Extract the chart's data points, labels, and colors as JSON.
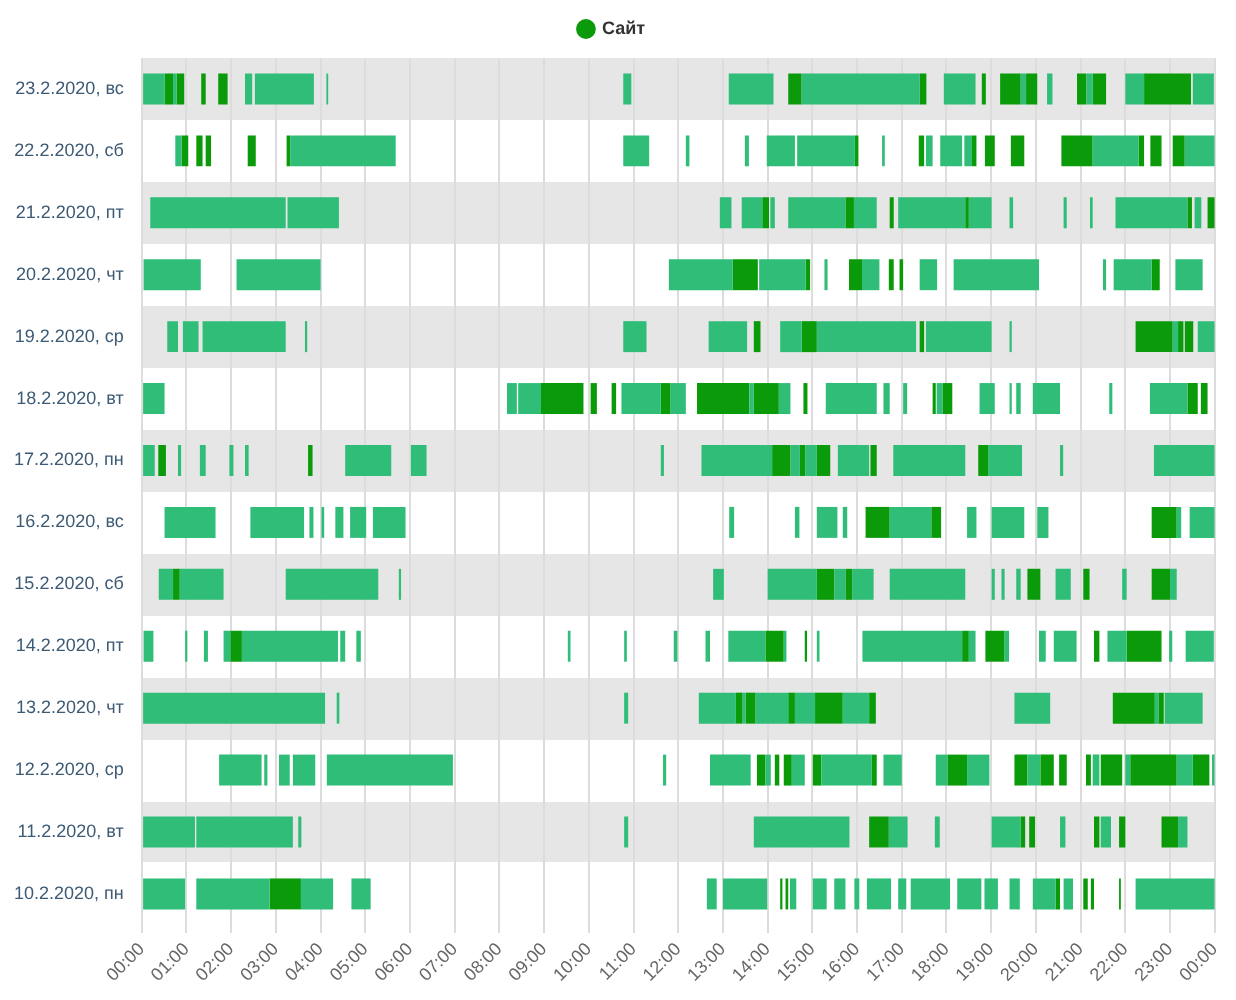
{
  "chart_data": {
    "type": "bar",
    "orientation": "horizontal",
    "legend": "top",
    "grid": "x",
    "categories": [
      "23.2.2020, вс",
      "22.2.2020, сб",
      "21.2.2020, пт",
      "20.2.2020, чт",
      "19.2.2020, ср",
      "18.2.2020, вт",
      "17.2.2020, пн",
      "16.2.2020, вс",
      "15.2.2020, сб",
      "14.2.2020, пт",
      "13.2.2020, чт",
      "12.2.2020, ср",
      "11.2.2020, вт",
      "10.2.2020, пн"
    ],
    "xlim": [
      0,
      24
    ],
    "xticks": [
      {
        "value": 0,
        "label": "00:00"
      },
      {
        "value": 1,
        "label": "01:00"
      },
      {
        "value": 2,
        "label": "02:00"
      },
      {
        "value": 3,
        "label": "03:00"
      },
      {
        "value": 4,
        "label": "04:00"
      },
      {
        "value": 5,
        "label": "05:00"
      },
      {
        "value": 6,
        "label": "06:00"
      },
      {
        "value": 7,
        "label": "07:00"
      },
      {
        "value": 8,
        "label": "08:00"
      },
      {
        "value": 9,
        "label": "09:00"
      },
      {
        "value": 10,
        "label": "10:00"
      },
      {
        "value": 11,
        "label": "11:00"
      },
      {
        "value": 12,
        "label": "12:00"
      },
      {
        "value": 13,
        "label": "13:00"
      },
      {
        "value": 14,
        "label": "14:00"
      },
      {
        "value": 15,
        "label": "15:00"
      },
      {
        "value": 16,
        "label": "16:00"
      },
      {
        "value": 17,
        "label": "17:00"
      },
      {
        "value": 18,
        "label": "18:00"
      },
      {
        "value": 19,
        "label": "19:00"
      },
      {
        "value": 20,
        "label": "20:00"
      },
      {
        "value": 21,
        "label": "21:00"
      },
      {
        "value": 22,
        "label": "22:00"
      },
      {
        "value": 23,
        "label": "23:00"
      },
      {
        "value": 24,
        "label": "00:00"
      }
    ],
    "series": [
      {
        "color": "#2fbd78",
        "x": [
          "23.2.2020, вс",
          "23.2.2020, вс",
          "23.2.2020, вс",
          "23.2.2020, вс",
          "23.2.2020, вс",
          "23.2.2020, вс",
          "23.2.2020, вс",
          "23.2.2020, вс",
          "23.2.2020, вс",
          "23.2.2020, вс",
          "23.2.2020, вс",
          "23.2.2020, вс",
          "23.2.2020, вс",
          "23.2.2020, вс",
          "22.2.2020, сб",
          "22.2.2020, сб",
          "22.2.2020, сб",
          "22.2.2020, сб",
          "22.2.2020, сб",
          "22.2.2020, сб",
          "22.2.2020, сб",
          "22.2.2020, сб",
          "22.2.2020, сб",
          "22.2.2020, сб",
          "22.2.2020, сб",
          "22.2.2020, сб",
          "22.2.2020, сб",
          "21.2.2020, пт",
          "21.2.2020, пт",
          "21.2.2020, пт",
          "21.2.2020, пт",
          "21.2.2020, пт",
          "21.2.2020, пт",
          "21.2.2020, пт",
          "21.2.2020, пт",
          "21.2.2020, пт",
          "21.2.2020, пт",
          "21.2.2020, пт",
          "21.2.2020, пт",
          "21.2.2020, пт",
          "21.2.2020, пт",
          "20.2.2020, чт",
          "20.2.2020, чт",
          "20.2.2020, чт",
          "20.2.2020, чт",
          "20.2.2020, чт",
          "20.2.2020, чт",
          "20.2.2020, чт",
          "20.2.2020, чт",
          "20.2.2020, чт",
          "20.2.2020, чт",
          "20.2.2020, чт",
          "19.2.2020, ср",
          "19.2.2020, ср",
          "19.2.2020, ср",
          "19.2.2020, ср",
          "19.2.2020, ср",
          "19.2.2020, ср",
          "19.2.2020, ср",
          "19.2.2020, ср",
          "19.2.2020, ср",
          "19.2.2020, ср",
          "19.2.2020, ср",
          "19.2.2020, ср",
          "18.2.2020, вт",
          "18.2.2020, вт",
          "18.2.2020, вт",
          "18.2.2020, вт",
          "18.2.2020, вт",
          "18.2.2020, вт",
          "18.2.2020, вт",
          "18.2.2020, вт",
          "18.2.2020, вт",
          "18.2.2020, вт",
          "18.2.2020, вт",
          "18.2.2020, вт",
          "18.2.2020, вт",
          "18.2.2020, вт",
          "18.2.2020, вт",
          "18.2.2020, вт",
          "18.2.2020, вт",
          "17.2.2020, пн",
          "17.2.2020, пн",
          "17.2.2020, пн",
          "17.2.2020, пн",
          "17.2.2020, пн",
          "17.2.2020, пн",
          "17.2.2020, пн",
          "17.2.2020, пн",
          "17.2.2020, пн",
          "17.2.2020, пн",
          "17.2.2020, пн",
          "17.2.2020, пн",
          "17.2.2020, пн",
          "17.2.2020, пн",
          "17.2.2020, пн",
          "17.2.2020, пн",
          "16.2.2020, вс",
          "16.2.2020, вс",
          "16.2.2020, вс",
          "16.2.2020, вс",
          "16.2.2020, вс",
          "16.2.2020, вс",
          "16.2.2020, вс",
          "16.2.2020, вс",
          "16.2.2020, вс",
          "16.2.2020, вс",
          "16.2.2020, вс",
          "16.2.2020, вс",
          "16.2.2020, вс",
          "16.2.2020, вс",
          "16.2.2020, вс",
          "16.2.2020, вс",
          "16.2.2020, вс",
          "15.2.2020, сб",
          "15.2.2020, сб",
          "15.2.2020, сб",
          "15.2.2020, сб",
          "15.2.2020, сб",
          "15.2.2020, сб",
          "15.2.2020, сб",
          "15.2.2020, сб",
          "15.2.2020, сб",
          "15.2.2020, сб",
          "15.2.2020, сб",
          "15.2.2020, сб",
          "15.2.2020, сб",
          "15.2.2020, сб",
          "15.2.2020, сб",
          "14.2.2020, пт",
          "14.2.2020, пт",
          "14.2.2020, пт",
          "14.2.2020, пт",
          "14.2.2020, пт",
          "14.2.2020, пт",
          "14.2.2020, пт",
          "14.2.2020, пт",
          "14.2.2020, пт",
          "14.2.2020, пт",
          "14.2.2020, пт",
          "14.2.2020, пт",
          "14.2.2020, пт",
          "14.2.2020, пт",
          "14.2.2020, пт",
          "14.2.2020, пт",
          "14.2.2020, пт",
          "14.2.2020, пт",
          "14.2.2020, пт",
          "14.2.2020, пт",
          "14.2.2020, пт",
          "14.2.2020, пт",
          "13.2.2020, чт",
          "13.2.2020, чт",
          "13.2.2020, чт",
          "13.2.2020, чт",
          "13.2.2020, чт",
          "13.2.2020, чт",
          "13.2.2020, чт",
          "13.2.2020, чт",
          "13.2.2020, чт",
          "13.2.2020, чт",
          "13.2.2020, чт",
          "12.2.2020, ср",
          "12.2.2020, ср",
          "12.2.2020, ср",
          "12.2.2020, ср",
          "12.2.2020, ср",
          "12.2.2020, ср",
          "12.2.2020, ср",
          "12.2.2020, ср",
          "12.2.2020, ср",
          "12.2.2020, ср",
          "12.2.2020, ср",
          "12.2.2020, ср",
          "12.2.2020, ср",
          "12.2.2020, ср",
          "12.2.2020, ср",
          "12.2.2020, ср",
          "12.2.2020, ср",
          "12.2.2020, ср",
          "11.2.2020, вт",
          "11.2.2020, вт",
          "11.2.2020, вт",
          "11.2.2020, вт",
          "11.2.2020, вт",
          "11.2.2020, вт",
          "11.2.2020, вт",
          "11.2.2020, вт",
          "11.2.2020, вт",
          "11.2.2020, вт",
          "11.2.2020, вт",
          "10.2.2020, пн",
          "10.2.2020, пн",
          "10.2.2020, пн",
          "10.2.2020, пн",
          "10.2.2020, пн",
          "10.2.2020, пн",
          "10.2.2020, пн",
          "10.2.2020, пн",
          "10.2.2020, пн",
          "10.2.2020, пн",
          "10.2.2020, пн",
          "10.2.2020, пн",
          "10.2.2020, пн",
          "10.2.2020, пн",
          "10.2.2020, пн",
          "10.2.2020, пн",
          "10.2.2020, пн",
          "10.2.2020, пн",
          "10.2.2020, пн"
        ],
        "base": [
          0.03,
          0.7,
          2.31,
          2.53,
          4.13,
          10.77,
          13.13,
          14.76,
          17.94,
          19.66,
          20.25,
          21.13,
          22.0,
          23.51,
          0.75,
          3.32,
          10.77,
          12.17,
          13.49,
          13.98,
          14.66,
          16.56,
          17.54,
          17.86,
          18.4,
          21.27,
          23.33,
          0.19,
          3.26,
          12.93,
          13.42,
          14.06,
          14.46,
          15.93,
          16.92,
          18.5,
          19.41,
          20.62,
          21.21,
          21.78,
          23.55,
          0.04,
          2.12,
          11.79,
          13.81,
          15.27,
          16.11,
          17.4,
          18.16,
          21.5,
          21.74,
          23.12,
          0.57,
          0.92,
          1.36,
          3.65,
          10.77,
          12.68,
          14.28,
          15.1,
          17.54,
          19.41,
          23.06,
          23.62,
          0.03,
          8.17,
          8.42,
          10.73,
          11.83,
          13.59,
          14.25,
          15.3,
          16.59,
          17.03,
          17.78,
          18.74,
          19.41,
          19.56,
          19.93,
          21.64,
          22.55,
          0.03,
          0.81,
          1.3,
          1.96,
          2.31,
          4.55,
          6.02,
          11.61,
          12.52,
          14.51,
          14.84,
          15.57,
          16.81,
          18.93,
          20.54,
          22.64,
          0.51,
          2.43,
          3.75,
          4.02,
          4.33,
          4.66,
          5.17,
          13.14,
          14.61,
          15.1,
          15.68,
          16.73,
          18.46,
          19.01,
          20.03,
          23.15,
          23.44,
          0.38,
          0.85,
          3.22,
          5.75,
          12.78,
          14.0,
          15.49,
          15.89,
          16.73,
          19.01,
          19.23,
          19.56,
          20.44,
          21.93,
          23.0,
          0.04,
          0.97,
          1.39,
          1.83,
          2.24,
          4.44,
          4.8,
          9.53,
          10.79,
          11.9,
          12.61,
          13.12,
          14.36,
          15.1,
          16.12,
          18.5,
          19.3,
          20.07,
          20.4,
          21.6,
          22.98,
          23.35,
          0.03,
          4.36,
          10.79,
          12.46,
          13.44,
          13.73,
          14.61,
          15.68,
          19.52,
          22.66,
          22.88,
          1.73,
          2.74,
          3.07,
          3.38,
          4.14,
          11.66,
          12.71,
          13.95,
          14.54,
          15.2,
          16.59,
          17.76,
          18.46,
          19.81,
          21.27,
          22.0,
          23.15,
          23.94,
          0.03,
          1.22,
          3.5,
          10.79,
          13.69,
          16.71,
          17.74,
          19.01,
          20.54,
          21.45,
          23.18,
          0.03,
          1.22,
          3.56,
          4.69,
          12.64,
          13.0,
          14.5,
          15.01,
          15.49,
          15.94,
          16.22,
          16.92,
          17.2,
          18.24,
          18.85,
          19.41,
          19.93,
          20.62,
          22.23
        ],
        "values": [
          0.48,
          0.08,
          0.16,
          1.32,
          0.04,
          0.18,
          1.0,
          2.64,
          0.71,
          0.12,
          0.12,
          0.14,
          0.42,
          0.47,
          0.14,
          2.36,
          0.58,
          0.08,
          0.09,
          0.63,
          1.29,
          0.06,
          0.15,
          0.49,
          0.17,
          1.03,
          0.67,
          3.03,
          1.15,
          0.26,
          0.46,
          0.1,
          1.28,
          0.51,
          1.5,
          0.51,
          0.08,
          0.07,
          0.06,
          1.61,
          0.15,
          1.28,
          1.88,
          1.43,
          1.04,
          0.07,
          0.39,
          0.39,
          1.91,
          0.07,
          0.85,
          0.61,
          0.24,
          0.35,
          1.86,
          0.05,
          0.52,
          0.86,
          0.48,
          2.22,
          1.47,
          0.05,
          0.12,
          0.38,
          0.48,
          0.22,
          0.51,
          0.88,
          0.34,
          0.1,
          0.26,
          1.14,
          0.14,
          0.09,
          0.13,
          0.34,
          0.05,
          0.1,
          0.61,
          0.07,
          0.84,
          0.26,
          0.07,
          0.13,
          0.09,
          0.08,
          1.03,
          0.35,
          0.07,
          1.58,
          0.21,
          0.26,
          0.7,
          1.61,
          0.76,
          0.07,
          1.36,
          1.14,
          1.2,
          0.09,
          0.06,
          0.18,
          0.36,
          0.73,
          0.11,
          0.1,
          0.46,
          0.1,
          0.93,
          0.21,
          0.73,
          0.25,
          0.1,
          0.56,
          0.32,
          0.98,
          2.07,
          0.05,
          0.24,
          1.1,
          0.25,
          0.48,
          1.69,
          0.07,
          0.07,
          0.1,
          0.34,
          0.1,
          0.15,
          0.22,
          0.05,
          0.09,
          0.15,
          2.15,
          0.11,
          0.1,
          0.06,
          0.06,
          0.08,
          0.1,
          0.83,
          0.06,
          0.06,
          2.23,
          0.15,
          0.1,
          0.15,
          0.51,
          0.43,
          0.07,
          0.63,
          4.07,
          0.06,
          0.09,
          0.83,
          0.07,
          0.73,
          0.45,
          0.59,
          0.8,
          0.08,
          0.85,
          0.95,
          0.07,
          0.24,
          0.5,
          2.82,
          0.07,
          0.91,
          0.12,
          0.29,
          1.13,
          0.41,
          0.26,
          0.5,
          0.29,
          0.15,
          0.11,
          0.36,
          0.06,
          1.16,
          2.16,
          0.07,
          0.09,
          2.14,
          0.42,
          0.11,
          0.65,
          0.12,
          0.23,
          0.21,
          0.94,
          1.64,
          0.72,
          0.43,
          0.22,
          0.99,
          0.14,
          0.31,
          0.25,
          0.11,
          0.54,
          0.18,
          0.88,
          0.54,
          0.3,
          0.23,
          0.51,
          0.21,
          1.77
        ]
      },
      {
        "name": "Сайт",
        "color": "#0a9a0a",
        "x": [
          "23.2.2020, вс",
          "23.2.2020, вс",
          "23.2.2020, вс",
          "23.2.2020, вс",
          "23.2.2020, вс",
          "23.2.2020, вс",
          "23.2.2020, вс",
          "23.2.2020, вс",
          "23.2.2020, вс",
          "23.2.2020, вс",
          "23.2.2020, вс",
          "23.2.2020, вс",
          "22.2.2020, сб",
          "22.2.2020, сб",
          "22.2.2020, сб",
          "22.2.2020, сб",
          "22.2.2020, сб",
          "22.2.2020, сб",
          "22.2.2020, сб",
          "22.2.2020, сб",
          "22.2.2020, сб",
          "22.2.2020, сб",
          "22.2.2020, сб",
          "22.2.2020, сб",
          "22.2.2020, сб",
          "22.2.2020, сб",
          "21.2.2020, пт",
          "21.2.2020, пт",
          "21.2.2020, пт",
          "21.2.2020, пт",
          "21.2.2020, пт",
          "21.2.2020, пт",
          "20.2.2020, чт",
          "20.2.2020, чт",
          "20.2.2020, чт",
          "20.2.2020, чт",
          "20.2.2020, чт",
          "20.2.2020, чт",
          "19.2.2020, ср",
          "19.2.2020, ср",
          "19.2.2020, ср",
          "19.2.2020, ср",
          "19.2.2020, ср",
          "19.2.2020, ср",
          "18.2.2020, вт",
          "18.2.2020, вт",
          "18.2.2020, вт",
          "18.2.2020, вт",
          "18.2.2020, вт",
          "18.2.2020, вт",
          "18.2.2020, вт",
          "18.2.2020, вт",
          "18.2.2020, вт",
          "18.2.2020, вт",
          "18.2.2020, вт",
          "17.2.2020, пн",
          "17.2.2020, пн",
          "17.2.2020, пн",
          "17.2.2020, пн",
          "17.2.2020, пн",
          "17.2.2020, пн",
          "17.2.2020, пн",
          "16.2.2020, вс",
          "16.2.2020, вс",
          "16.2.2020, вс",
          "15.2.2020, сб",
          "15.2.2020, сб",
          "15.2.2020, сб",
          "15.2.2020, сб",
          "15.2.2020, сб",
          "15.2.2020, сб",
          "14.2.2020, пт",
          "14.2.2020, пт",
          "14.2.2020, пт",
          "14.2.2020, пт",
          "14.2.2020, пт",
          "14.2.2020, пт",
          "14.2.2020, пт",
          "13.2.2020, чт",
          "13.2.2020, чт",
          "13.2.2020, чт",
          "13.2.2020, чт",
          "13.2.2020, чт",
          "13.2.2020, чт",
          "13.2.2020, чт",
          "12.2.2020, ср",
          "12.2.2020, ср",
          "12.2.2020, ср",
          "12.2.2020, ср",
          "12.2.2020, ср",
          "12.2.2020, ср",
          "12.2.2020, ср",
          "12.2.2020, ср",
          "12.2.2020, ср",
          "12.2.2020, ср",
          "12.2.2020, ср",
          "12.2.2020, ср",
          "12.2.2020, ср",
          "11.2.2020, вт",
          "11.2.2020, вт",
          "11.2.2020, вт",
          "11.2.2020, вт",
          "11.2.2020, вт",
          "11.2.2020, вт",
          "10.2.2020, пн",
          "10.2.2020, пн",
          "10.2.2020, пн",
          "10.2.2020, пн",
          "10.2.2020, пн",
          "10.2.2020, пн",
          "10.2.2020, пн"
        ],
        "base": [
          0.51,
          0.78,
          1.33,
          1.71,
          14.46,
          17.4,
          18.79,
          19.2,
          19.78,
          20.92,
          21.27,
          22.42,
          0.89,
          1.22,
          1.43,
          2.37,
          3.24,
          15.95,
          17.38,
          18.57,
          18.86,
          19.44,
          20.57,
          22.3,
          22.56,
          23.06,
          13.88,
          15.74,
          16.73,
          18.42,
          23.39,
          23.84,
          13.22,
          14.85,
          15.82,
          16.71,
          16.95,
          22.59,
          13.69,
          14.76,
          17.4,
          22.23,
          23.18,
          23.33,
          8.93,
          10.04,
          10.51,
          11.61,
          12.42,
          13.69,
          14.8,
          17.69,
          17.91,
          23.39,
          23.69,
          0.37,
          3.72,
          14.1,
          14.72,
          15.1,
          16.3,
          18.71,
          16.19,
          17.66,
          22.59,
          0.7,
          15.1,
          15.74,
          19.81,
          21.06,
          22.59,
          1.98,
          13.95,
          14.83,
          18.35,
          18.87,
          21.3,
          22.03,
          13.29,
          13.51,
          14.46,
          15.06,
          16.27,
          21.72,
          22.74,
          13.76,
          14.16,
          14.36,
          15.01,
          16.33,
          18.02,
          19.52,
          20.1,
          20.52,
          21.12,
          21.45,
          22.11,
          23.51,
          16.27,
          19.66,
          19.85,
          21.3,
          21.86,
          22.81,
          2.86,
          14.28,
          14.4,
          20.44,
          21.06,
          21.23,
          21.86
        ],
        "values": [
          0.19,
          0.17,
          0.1,
          0.21,
          0.3,
          0.15,
          0.09,
          0.46,
          0.25,
          0.21,
          0.3,
          1.05,
          0.15,
          0.14,
          0.12,
          0.18,
          0.08,
          0.08,
          0.12,
          0.1,
          0.22,
          0.3,
          0.7,
          0.12,
          0.25,
          0.27,
          0.15,
          0.19,
          0.09,
          0.08,
          0.1,
          0.16,
          0.56,
          0.1,
          0.29,
          0.11,
          0.08,
          0.18,
          0.15,
          0.34,
          0.1,
          0.83,
          0.12,
          0.19,
          0.95,
          0.14,
          0.1,
          0.22,
          1.17,
          0.56,
          0.09,
          0.07,
          0.22,
          0.23,
          0.15,
          0.17,
          0.1,
          0.41,
          0.12,
          0.3,
          0.14,
          0.22,
          0.54,
          0.22,
          0.56,
          0.15,
          0.39,
          0.15,
          0.29,
          0.14,
          0.41,
          0.26,
          0.41,
          0.05,
          0.15,
          0.43,
          0.12,
          0.78,
          0.15,
          0.22,
          0.15,
          0.62,
          0.15,
          0.94,
          0.12,
          0.19,
          0.1,
          0.18,
          0.19,
          0.11,
          0.44,
          0.29,
          0.3,
          0.17,
          0.11,
          0.48,
          1.04,
          0.37,
          0.44,
          0.1,
          0.13,
          0.12,
          0.14,
          0.37,
          0.7,
          0.05,
          0.06,
          0.1,
          0.1,
          0.07,
          0.04
        ]
      }
    ]
  }
}
